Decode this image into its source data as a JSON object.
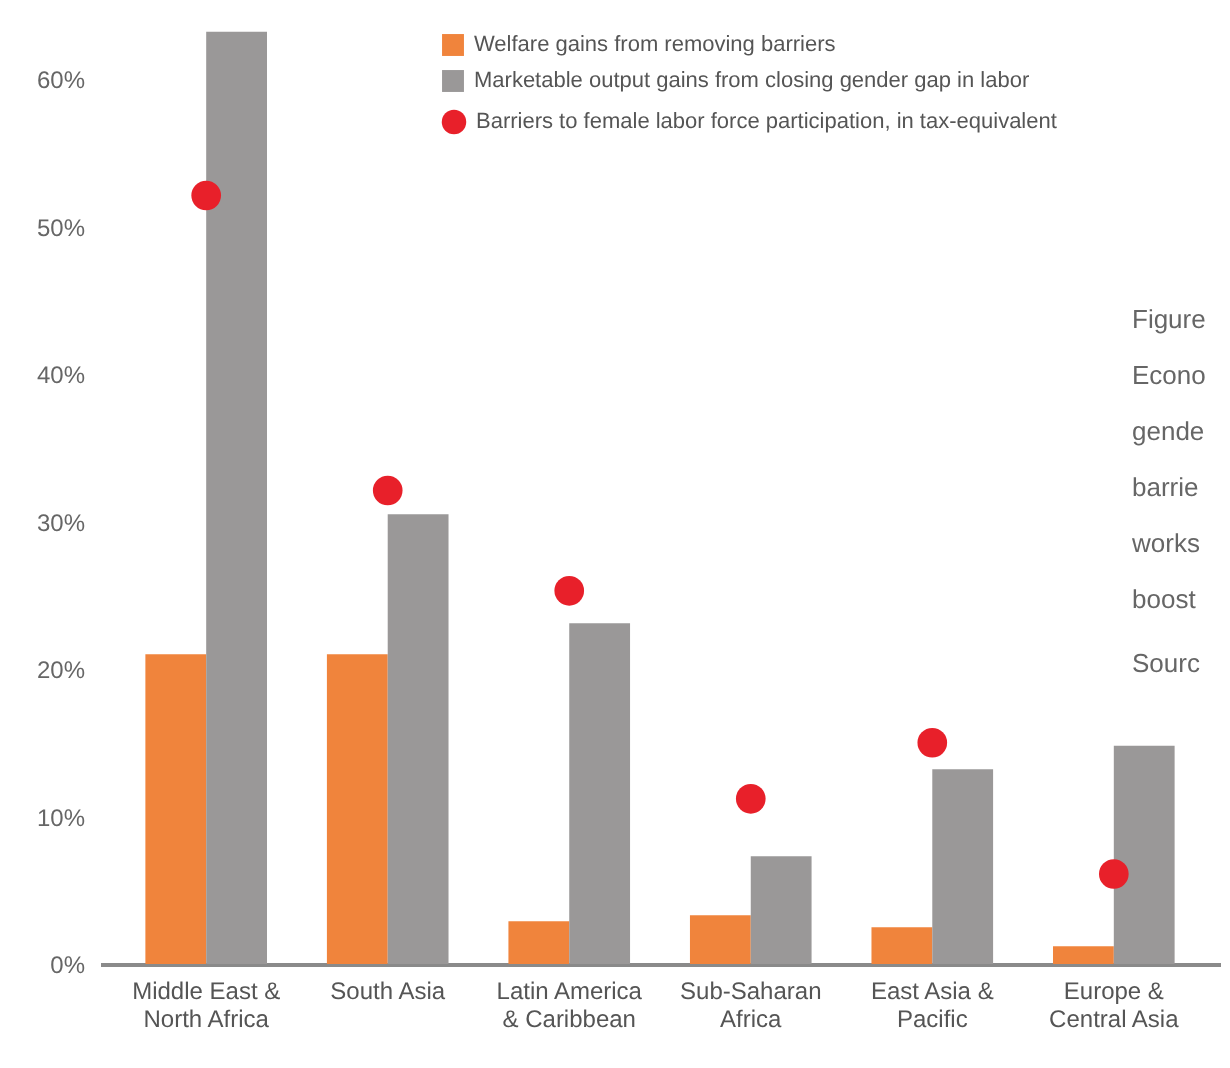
{
  "chart_data": {
    "type": "bar",
    "categories": [
      "Middle East &\nNorth Africa",
      "South Asia",
      "Latin America\n& Caribbean",
      "Sub-Saharan\nAfrica",
      "East Asia &\nPacific",
      "Europe &\nCentral Asia"
    ],
    "series": [
      {
        "name": "Welfare gains from removing barriers",
        "color": "#f0843c",
        "values": [
          21.0,
          21.0,
          2.9,
          3.3,
          2.5,
          1.2
        ]
      },
      {
        "name": "Marketable output gains from closing gender gap in labor",
        "color": "#9a9898",
        "values": [
          63.2,
          30.5,
          23.1,
          7.3,
          13.2,
          14.8
        ]
      },
      {
        "name": "Barriers to female labor force participation, in tax-equivalent",
        "type": "scatter",
        "color": "#e8202a",
        "marker": "circle",
        "values": [
          52.1,
          32.1,
          25.3,
          11.2,
          15.0,
          6.1
        ]
      }
    ],
    "ylim": [
      0,
      64
    ],
    "yticks": [
      {
        "value": 0,
        "label": "0%"
      },
      {
        "value": 10,
        "label": "10%"
      },
      {
        "value": 20,
        "label": "20%"
      },
      {
        "value": 30,
        "label": "30%"
      },
      {
        "value": 40,
        "label": "40%"
      },
      {
        "value": 50,
        "label": "50%"
      },
      {
        "value": 60,
        "label": "60%"
      }
    ],
    "grid": false,
    "legend": "top right",
    "annotations": [
      "Figure",
      "Econo",
      "gende",
      "barrie",
      "works",
      "boost",
      "Sourc"
    ]
  }
}
